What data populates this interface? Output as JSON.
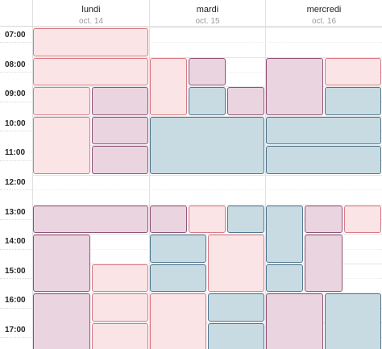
{
  "days": [
    {
      "name": "lundi",
      "date": "oct. 14"
    },
    {
      "name": "mardi",
      "date": "oct. 15"
    },
    {
      "name": "mercredi",
      "date": "oct. 16"
    }
  ],
  "hours": [
    "07:00",
    "08:00",
    "09:00",
    "10:00",
    "11:00",
    "12:00",
    "13:00",
    "14:00",
    "15:00",
    "16:00",
    "17:00"
  ],
  "colors": {
    "pink": "#fbe4e6",
    "mauve": "#ead4df",
    "blue": "#c9dbe2"
  },
  "events": [
    {
      "day": 0,
      "start": "07:00",
      "end": "08:00",
      "color": "pink",
      "lane": 0,
      "lanes": 1
    },
    {
      "day": 0,
      "start": "08:00",
      "end": "09:00",
      "color": "pink",
      "lane": 0,
      "lanes": 1
    },
    {
      "day": 0,
      "start": "09:00",
      "end": "10:00",
      "color": "pink",
      "lane": 0,
      "lanes": 2
    },
    {
      "day": 0,
      "start": "09:00",
      "end": "10:00",
      "color": "mauve",
      "lane": 1,
      "lanes": 2
    },
    {
      "day": 0,
      "start": "10:00",
      "end": "12:00",
      "color": "pink",
      "lane": 0,
      "lanes": 2
    },
    {
      "day": 0,
      "start": "10:00",
      "end": "11:00",
      "color": "mauve",
      "lane": 1,
      "lanes": 2
    },
    {
      "day": 0,
      "start": "11:00",
      "end": "12:00",
      "color": "mauve",
      "lane": 1,
      "lanes": 2
    },
    {
      "day": 0,
      "start": "13:00",
      "end": "14:00",
      "color": "mauve",
      "lane": 0,
      "lanes": 1
    },
    {
      "day": 0,
      "start": "14:00",
      "end": "16:00",
      "color": "mauve",
      "lane": 0,
      "lanes": 2
    },
    {
      "day": 0,
      "start": "15:00",
      "end": "16:00",
      "color": "pink",
      "lane": 1,
      "lanes": 2
    },
    {
      "day": 0,
      "start": "16:00",
      "end": "18:00",
      "color": "mauve",
      "lane": 0,
      "lanes": 2
    },
    {
      "day": 0,
      "start": "16:00",
      "end": "17:00",
      "color": "pink",
      "lane": 1,
      "lanes": 2
    },
    {
      "day": 0,
      "start": "17:00",
      "end": "18:00",
      "color": "pink",
      "lane": 1,
      "lanes": 2
    },
    {
      "day": 1,
      "start": "08:00",
      "end": "10:00",
      "color": "pink",
      "lane": 0,
      "lanes": 3
    },
    {
      "day": 1,
      "start": "08:00",
      "end": "09:00",
      "color": "mauve",
      "lane": 1,
      "lanes": 3
    },
    {
      "day": 1,
      "start": "09:00",
      "end": "10:00",
      "color": "blue",
      "lane": 1,
      "lanes": 3
    },
    {
      "day": 1,
      "start": "09:00",
      "end": "10:00",
      "color": "mauve",
      "lane": 2,
      "lanes": 3
    },
    {
      "day": 1,
      "start": "10:00",
      "end": "12:00",
      "color": "blue",
      "lane": 0,
      "lanes": 1
    },
    {
      "day": 1,
      "start": "13:00",
      "end": "14:00",
      "color": "mauve",
      "lane": 0,
      "lanes": 3
    },
    {
      "day": 1,
      "start": "13:00",
      "end": "14:00",
      "color": "pink",
      "lane": 1,
      "lanes": 3
    },
    {
      "day": 1,
      "start": "13:00",
      "end": "14:00",
      "color": "blue",
      "lane": 2,
      "lanes": 3
    },
    {
      "day": 1,
      "start": "14:00",
      "end": "15:00",
      "color": "blue",
      "lane": 0,
      "lanes": 2
    },
    {
      "day": 1,
      "start": "14:00",
      "end": "16:00",
      "color": "pink",
      "lane": 1,
      "lanes": 2
    },
    {
      "day": 1,
      "start": "15:00",
      "end": "16:00",
      "color": "blue",
      "lane": 0,
      "lanes": 2
    },
    {
      "day": 1,
      "start": "16:00",
      "end": "18:00",
      "color": "pink",
      "lane": 0,
      "lanes": 2
    },
    {
      "day": 1,
      "start": "16:00",
      "end": "17:00",
      "color": "blue",
      "lane": 1,
      "lanes": 2
    },
    {
      "day": 1,
      "start": "17:00",
      "end": "18:00",
      "color": "blue",
      "lane": 1,
      "lanes": 2
    },
    {
      "day": 2,
      "start": "08:00",
      "end": "10:00",
      "color": "mauve",
      "lane": 0,
      "lanes": 2
    },
    {
      "day": 2,
      "start": "08:00",
      "end": "09:00",
      "color": "pink",
      "lane": 1,
      "lanes": 2
    },
    {
      "day": 2,
      "start": "09:00",
      "end": "10:00",
      "color": "blue",
      "lane": 1,
      "lanes": 2
    },
    {
      "day": 2,
      "start": "10:00",
      "end": "11:00",
      "color": "blue",
      "lane": 0,
      "lanes": 1
    },
    {
      "day": 2,
      "start": "11:00",
      "end": "12:00",
      "color": "blue",
      "lane": 0,
      "lanes": 1
    },
    {
      "day": 2,
      "start": "13:00",
      "end": "15:00",
      "color": "blue",
      "lane": 0,
      "lanes": 3
    },
    {
      "day": 2,
      "start": "13:00",
      "end": "14:00",
      "color": "mauve",
      "lane": 1,
      "lanes": 3
    },
    {
      "day": 2,
      "start": "13:00",
      "end": "14:00",
      "color": "pink",
      "lane": 2,
      "lanes": 3
    },
    {
      "day": 2,
      "start": "14:00",
      "end": "16:00",
      "color": "mauve",
      "lane": 1,
      "lanes": 3
    },
    {
      "day": 2,
      "start": "15:00",
      "end": "16:00",
      "color": "blue",
      "lane": 0,
      "lanes": 3
    },
    {
      "day": 2,
      "start": "16:00",
      "end": "18:00",
      "color": "mauve",
      "lane": 0,
      "lanes": 2
    },
    {
      "day": 2,
      "start": "16:00",
      "end": "18:00",
      "color": "blue",
      "lane": 1,
      "lanes": 2
    }
  ]
}
